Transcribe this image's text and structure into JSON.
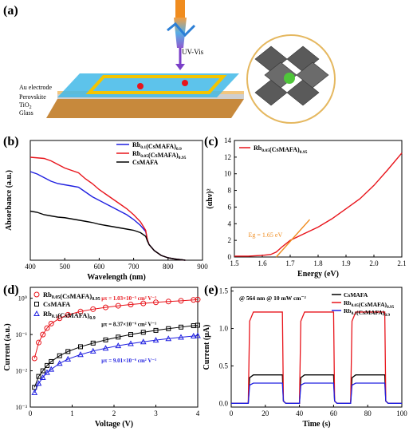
{
  "panels": {
    "a": "(a)",
    "b": "(b)",
    "c": "(c)",
    "d": "(d)",
    "e": "(e)"
  },
  "schematic": {
    "light": "UV-Vis",
    "layers": [
      "Au electrode",
      "Perovskite",
      "TiO2",
      "Glass"
    ]
  },
  "colors": {
    "red": "#e8141b",
    "blue": "#1f1fe0",
    "black": "#000000",
    "orange": "#f08c1e",
    "grey": "#777777"
  },
  "chart_data": [
    {
      "panel": "b",
      "type": "line",
      "xlabel": "Wavelength (nm)",
      "ylabel": "Absorbance (a.u.)",
      "xlim": [
        400,
        900
      ],
      "xticks": [
        400,
        500,
        600,
        700,
        800,
        900
      ],
      "legend_position": "top-right",
      "series": [
        {
          "name": "Rb0.1(CsMAFA)0.9",
          "color": "blue",
          "x": [
            400,
            420,
            440,
            460,
            480,
            500,
            520,
            540,
            560,
            580,
            600,
            620,
            640,
            660,
            680,
            700,
            720,
            735,
            740,
            745,
            760,
            780,
            800,
            820,
            850
          ],
          "y": [
            0.74,
            0.72,
            0.69,
            0.66,
            0.64,
            0.63,
            0.62,
            0.61,
            0.57,
            0.53,
            0.5,
            0.47,
            0.44,
            0.41,
            0.38,
            0.34,
            0.29,
            0.24,
            0.17,
            0.13,
            0.08,
            0.04,
            0.02,
            0.01,
            0.0
          ]
        },
        {
          "name": "Rb0.05(CsMAFA)0.95",
          "color": "red",
          "x": [
            400,
            420,
            440,
            460,
            480,
            500,
            520,
            540,
            560,
            580,
            600,
            620,
            640,
            660,
            680,
            700,
            720,
            735,
            740,
            745,
            760,
            780,
            800,
            820,
            850
          ],
          "y": [
            0.86,
            0.855,
            0.85,
            0.83,
            0.8,
            0.77,
            0.75,
            0.73,
            0.68,
            0.64,
            0.59,
            0.55,
            0.51,
            0.47,
            0.43,
            0.38,
            0.32,
            0.25,
            0.17,
            0.13,
            0.08,
            0.04,
            0.02,
            0.01,
            0.0
          ]
        },
        {
          "name": "CsMAFA",
          "color": "black",
          "x": [
            400,
            420,
            440,
            460,
            480,
            500,
            520,
            540,
            560,
            580,
            600,
            620,
            640,
            660,
            680,
            700,
            720,
            735,
            740,
            745,
            760,
            780,
            800,
            820,
            850
          ],
          "y": [
            0.41,
            0.4,
            0.38,
            0.37,
            0.36,
            0.355,
            0.345,
            0.335,
            0.325,
            0.315,
            0.3,
            0.29,
            0.28,
            0.27,
            0.26,
            0.25,
            0.23,
            0.2,
            0.16,
            0.13,
            0.08,
            0.04,
            0.02,
            0.01,
            0.0
          ]
        }
      ]
    },
    {
      "panel": "c",
      "type": "line",
      "xlabel": "Energy (eV)",
      "ylabel": "(αhν)²",
      "xlim": [
        1.5,
        2.1
      ],
      "ylim": [
        0,
        14
      ],
      "xticks": [
        1.5,
        1.6,
        1.7,
        1.8,
        1.9,
        2.0,
        2.1
      ],
      "yticks": [
        0,
        2,
        4,
        6,
        8,
        10,
        12,
        14
      ],
      "legend_position": "top-left",
      "annotation": "Eg = 1.65 eV",
      "series": [
        {
          "name": "Rb0.05(CsMAFA)0.95",
          "color": "red",
          "x": [
            1.5,
            1.55,
            1.6,
            1.63,
            1.65,
            1.67,
            1.7,
            1.75,
            1.8,
            1.85,
            1.9,
            1.95,
            2.0,
            2.05,
            2.1
          ],
          "y": [
            0.1,
            0.1,
            0.2,
            0.3,
            0.6,
            1.2,
            2.0,
            2.8,
            3.6,
            4.6,
            5.8,
            7.0,
            8.6,
            10.5,
            12.5
          ]
        },
        {
          "name": "fit",
          "color": "orange",
          "x": [
            1.65,
            1.77
          ],
          "y": [
            0,
            4.5
          ]
        }
      ]
    },
    {
      "panel": "d",
      "type": "scatter",
      "xlabel": "Voltage (V)",
      "ylabel": "Current (a.u.)",
      "xlim": [
        0,
        4
      ],
      "ylim_log10": [
        -3,
        0.3
      ],
      "xticks": [
        0,
        1,
        2,
        3,
        4
      ],
      "yticks": [
        "10⁻³",
        "10⁻²",
        "10⁻¹",
        "10⁰"
      ],
      "legend_position": "top-left",
      "annotations": [
        {
          "series": "Rb0.05(CsMAFA)0.95",
          "text": "μτ = 1.03×10⁻⁵ cm² V⁻¹"
        },
        {
          "series": "CsMAFA",
          "text": "μτ = 8.37×10⁻⁶ cm² V⁻¹"
        },
        {
          "series": "Rb0.1(CsMAFA)0.9",
          "text": "μτ = 9.01×10⁻⁶ cm² V⁻¹"
        }
      ],
      "series": [
        {
          "name": "Rb0.05(CsMAFA)0.95",
          "color": "red",
          "marker": "circle",
          "x": [
            0.1,
            0.2,
            0.3,
            0.4,
            0.5,
            0.7,
            0.9,
            1.2,
            1.5,
            1.8,
            2.1,
            2.4,
            2.7,
            3.0,
            3.3,
            3.6,
            3.9,
            4.0
          ],
          "y": [
            0.022,
            0.06,
            0.1,
            0.15,
            0.2,
            0.28,
            0.35,
            0.43,
            0.5,
            0.56,
            0.62,
            0.67,
            0.72,
            0.77,
            0.81,
            0.85,
            0.9,
            0.92
          ]
        },
        {
          "name": "CsMAFA",
          "color": "black",
          "marker": "square",
          "x": [
            0.1,
            0.2,
            0.3,
            0.4,
            0.5,
            0.7,
            0.9,
            1.2,
            1.5,
            1.8,
            2.1,
            2.4,
            2.7,
            3.0,
            3.3,
            3.6,
            3.9,
            4.0
          ],
          "y": [
            0.0035,
            0.007,
            0.01,
            0.014,
            0.018,
            0.026,
            0.034,
            0.046,
            0.058,
            0.071,
            0.085,
            0.1,
            0.115,
            0.13,
            0.145,
            0.16,
            0.175,
            0.18
          ]
        },
        {
          "name": "Rb0.1(CsMAFA)0.9",
          "color": "blue",
          "marker": "triangle",
          "x": [
            0.1,
            0.2,
            0.3,
            0.4,
            0.5,
            0.7,
            0.9,
            1.2,
            1.5,
            1.8,
            2.1,
            2.4,
            2.7,
            3.0,
            3.3,
            3.6,
            3.9,
            4.0
          ],
          "y": [
            0.0025,
            0.0045,
            0.0065,
            0.009,
            0.011,
            0.016,
            0.021,
            0.028,
            0.035,
            0.042,
            0.049,
            0.056,
            0.063,
            0.07,
            0.077,
            0.084,
            0.091,
            0.093
          ]
        }
      ]
    },
    {
      "panel": "e",
      "type": "line",
      "xlabel": "Time (s)",
      "ylabel": "Current (μA)",
      "title": "@ 564 nm @ 10 mW cm⁻²",
      "xlim": [
        0,
        100
      ],
      "ylim": [
        -0.05,
        1.55
      ],
      "xticks": [
        0,
        20,
        40,
        60,
        80,
        100
      ],
      "yticks": [
        0.0,
        0.5,
        1.0,
        1.5
      ],
      "legend_position": "top-right",
      "light_on": [
        [
          10,
          30
        ],
        [
          40,
          60
        ],
        [
          70,
          90
        ]
      ],
      "series": [
        {
          "name": "CsMAFA",
          "color": "black",
          "on_level": 0.38
        },
        {
          "name": "Rb0.05(CsMAFA)0.95",
          "color": "red",
          "on_level": 1.22
        },
        {
          "name": "Rb0.1(CsMAFA)0.9",
          "color": "blue",
          "on_level": 0.27
        }
      ]
    }
  ]
}
